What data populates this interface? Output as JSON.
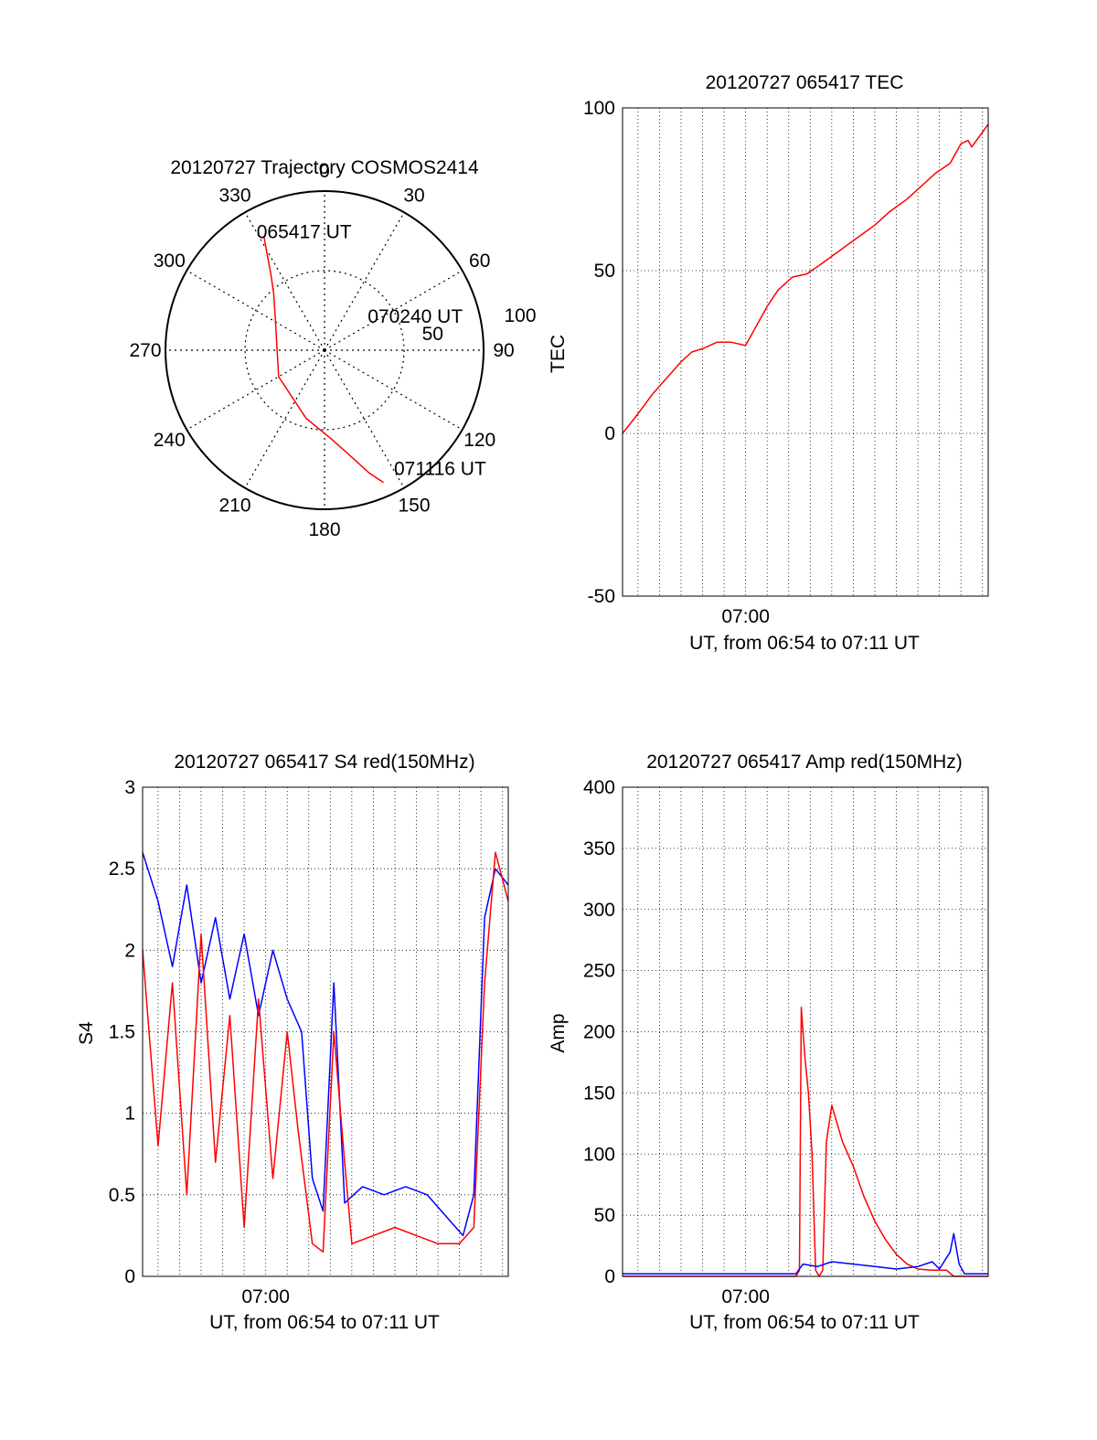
{
  "chart_data": [
    {
      "type": "polar",
      "title": "20120727 Trajectory COSMOS2414",
      "angle_labels": [
        "0",
        "30",
        "60",
        "90",
        "120",
        "150",
        "180",
        "210",
        "240",
        "270",
        "300",
        "330"
      ],
      "radial_labels": [
        "50",
        "100"
      ],
      "elevation_range": [
        0,
        90
      ],
      "series": [
        {
          "color": "#ff0000",
          "points": [
            {
              "az": 332,
              "el": 17
            },
            {
              "az": 329,
              "el": 27
            },
            {
              "az": 325,
              "el": 37
            },
            {
              "az": 318,
              "el": 47
            },
            {
              "az": 300,
              "el": 58
            },
            {
              "az": 240,
              "el": 60
            },
            {
              "az": 195,
              "el": 50
            },
            {
              "az": 176,
              "el": 40
            },
            {
              "az": 166,
              "el": 28
            },
            {
              "az": 160,
              "el": 16
            },
            {
              "az": 156,
              "el": 8
            }
          ]
        }
      ],
      "annotations": [
        {
          "text": "065417 UT",
          "az": 332,
          "el": 17
        },
        {
          "text": "070240 UT",
          "az": 60,
          "el": 57
        },
        {
          "text": "071116 UT",
          "az": 148,
          "el": 8
        }
      ]
    },
    {
      "type": "line",
      "title": "20120727 065417 TEC",
      "xlabel": "UT, from 06:54 to 07:11 UT",
      "ylabel": "TEC",
      "xlim": [
        "06:54:17",
        "07:11:16"
      ],
      "ylim": [
        -50,
        100
      ],
      "yticks": [
        "100",
        "50",
        "0",
        "-50"
      ],
      "xticks": [
        {
          "label": "07:00",
          "t": "07:00:00"
        }
      ],
      "grid": true,
      "series": [
        {
          "color": "#ff0000",
          "points": [
            [
              "06:54:17",
              0
            ],
            [
              "06:55:00",
              6
            ],
            [
              "06:55:40",
              12
            ],
            [
              "06:56:20",
              17
            ],
            [
              "06:57:00",
              22
            ],
            [
              "06:57:30",
              25
            ],
            [
              "06:58:00",
              26
            ],
            [
              "06:58:40",
              28
            ],
            [
              "06:59:20",
              28
            ],
            [
              "07:00:00",
              27
            ],
            [
              "07:00:30",
              33
            ],
            [
              "07:01:00",
              39
            ],
            [
              "07:01:30",
              44
            ],
            [
              "07:02:10",
              48
            ],
            [
              "07:02:50",
              49
            ],
            [
              "07:03:30",
              52
            ],
            [
              "07:04:20",
              56
            ],
            [
              "07:05:10",
              60
            ],
            [
              "07:06:00",
              64
            ],
            [
              "07:06:40",
              68
            ],
            [
              "07:07:30",
              72
            ],
            [
              "07:08:10",
              76
            ],
            [
              "07:08:50",
              80
            ],
            [
              "07:09:30",
              83
            ],
            [
              "07:10:00",
              89
            ],
            [
              "07:10:20",
              90
            ],
            [
              "07:10:30",
              88
            ],
            [
              "07:10:50",
              91
            ],
            [
              "07:11:16",
              95
            ]
          ]
        }
      ]
    },
    {
      "type": "line",
      "title": "20120727 065417 S4 red(150MHz)",
      "xlabel": "UT, from 06:54 to 07:11 UT",
      "ylabel": "S4",
      "xlim": [
        "06:54:17",
        "07:11:16"
      ],
      "ylim": [
        0,
        3
      ],
      "yticks": [
        "3",
        "2.5",
        "2",
        "1.5",
        "1",
        "0.5",
        "0"
      ],
      "xticks": [
        {
          "label": "07:00",
          "t": "07:00:00"
        }
      ],
      "grid": true,
      "series": [
        {
          "color": "#0000ff",
          "points": [
            [
              "06:54:17",
              2.6
            ],
            [
              "06:55:00",
              2.3
            ],
            [
              "06:55:40",
              1.9
            ],
            [
              "06:56:20",
              2.4
            ],
            [
              "06:57:00",
              1.8
            ],
            [
              "06:57:40",
              2.2
            ],
            [
              "06:58:20",
              1.7
            ],
            [
              "06:59:00",
              2.1
            ],
            [
              "06:59:40",
              1.6
            ],
            [
              "07:00:20",
              2.0
            ],
            [
              "07:01:00",
              1.7
            ],
            [
              "07:01:40",
              1.5
            ],
            [
              "07:02:10",
              0.6
            ],
            [
              "07:02:40",
              0.4
            ],
            [
              "07:03:10",
              1.8
            ],
            [
              "07:03:40",
              0.45
            ],
            [
              "07:04:30",
              0.55
            ],
            [
              "07:05:30",
              0.5
            ],
            [
              "07:06:30",
              0.55
            ],
            [
              "07:07:30",
              0.5
            ],
            [
              "07:08:30",
              0.35
            ],
            [
              "07:09:10",
              0.25
            ],
            [
              "07:09:40",
              0.5
            ],
            [
              "07:10:10",
              2.2
            ],
            [
              "07:10:40",
              2.5
            ],
            [
              "07:11:16",
              2.4
            ]
          ]
        },
        {
          "color": "#ff0000",
          "points": [
            [
              "06:54:17",
              2.0
            ],
            [
              "06:55:00",
              0.8
            ],
            [
              "06:55:40",
              1.8
            ],
            [
              "06:56:20",
              0.5
            ],
            [
              "06:57:00",
              2.1
            ],
            [
              "06:57:40",
              0.7
            ],
            [
              "06:58:20",
              1.6
            ],
            [
              "06:59:00",
              0.3
            ],
            [
              "06:59:40",
              1.7
            ],
            [
              "07:00:20",
              0.6
            ],
            [
              "07:01:00",
              1.5
            ],
            [
              "07:01:30",
              0.9
            ],
            [
              "07:02:10",
              0.2
            ],
            [
              "07:02:40",
              0.15
            ],
            [
              "07:03:10",
              1.5
            ],
            [
              "07:03:40",
              0.7
            ],
            [
              "07:04:00",
              0.2
            ],
            [
              "07:05:00",
              0.25
            ],
            [
              "07:06:00",
              0.3
            ],
            [
              "07:07:00",
              0.25
            ],
            [
              "07:08:00",
              0.2
            ],
            [
              "07:09:00",
              0.2
            ],
            [
              "07:09:40",
              0.3
            ],
            [
              "07:10:10",
              1.8
            ],
            [
              "07:10:40",
              2.6
            ],
            [
              "07:11:16",
              2.3
            ]
          ]
        }
      ]
    },
    {
      "type": "line",
      "title": "20120727 065417 Amp red(150MHz)",
      "xlabel": "UT, from 06:54 to 07:11 UT",
      "ylabel": "Amp",
      "xlim": [
        "06:54:17",
        "07:11:16"
      ],
      "ylim": [
        0,
        400
      ],
      "yticks": [
        "400",
        "350",
        "300",
        "250",
        "200",
        "150",
        "100",
        "50",
        "0"
      ],
      "xticks": [
        {
          "label": "07:00",
          "t": "07:00:00"
        }
      ],
      "grid": true,
      "series": [
        {
          "color": "#ff0000",
          "points": [
            [
              "06:54:17",
              0
            ],
            [
              "07:02:20",
              0
            ],
            [
              "07:02:30",
              5
            ],
            [
              "07:02:35",
              220
            ],
            [
              "07:02:45",
              180
            ],
            [
              "07:02:55",
              150
            ],
            [
              "07:03:05",
              100
            ],
            [
              "07:03:15",
              5
            ],
            [
              "07:03:25",
              0
            ],
            [
              "07:03:35",
              5
            ],
            [
              "07:03:45",
              110
            ],
            [
              "07:04:00",
              140
            ],
            [
              "07:04:30",
              110
            ],
            [
              "07:05:00",
              90
            ],
            [
              "07:05:30",
              65
            ],
            [
              "07:06:00",
              45
            ],
            [
              "07:06:30",
              30
            ],
            [
              "07:07:00",
              18
            ],
            [
              "07:07:30",
              10
            ],
            [
              "07:08:00",
              6
            ],
            [
              "07:08:40",
              5
            ],
            [
              "07:09:20",
              5
            ],
            [
              "07:09:40",
              0
            ],
            [
              "07:11:16",
              0
            ]
          ]
        },
        {
          "color": "#0000ff",
          "points": [
            [
              "06:54:17",
              2
            ],
            [
              "07:02:20",
              2
            ],
            [
              "07:02:40",
              10
            ],
            [
              "07:03:20",
              8
            ],
            [
              "07:04:00",
              12
            ],
            [
              "07:05:00",
              10
            ],
            [
              "07:06:00",
              8
            ],
            [
              "07:07:00",
              6
            ],
            [
              "07:08:00",
              8
            ],
            [
              "07:08:40",
              12
            ],
            [
              "07:09:00",
              6
            ],
            [
              "07:09:30",
              20
            ],
            [
              "07:09:40",
              35
            ],
            [
              "07:09:55",
              10
            ],
            [
              "07:10:10",
              2
            ],
            [
              "07:11:16",
              2
            ]
          ]
        }
      ]
    }
  ]
}
